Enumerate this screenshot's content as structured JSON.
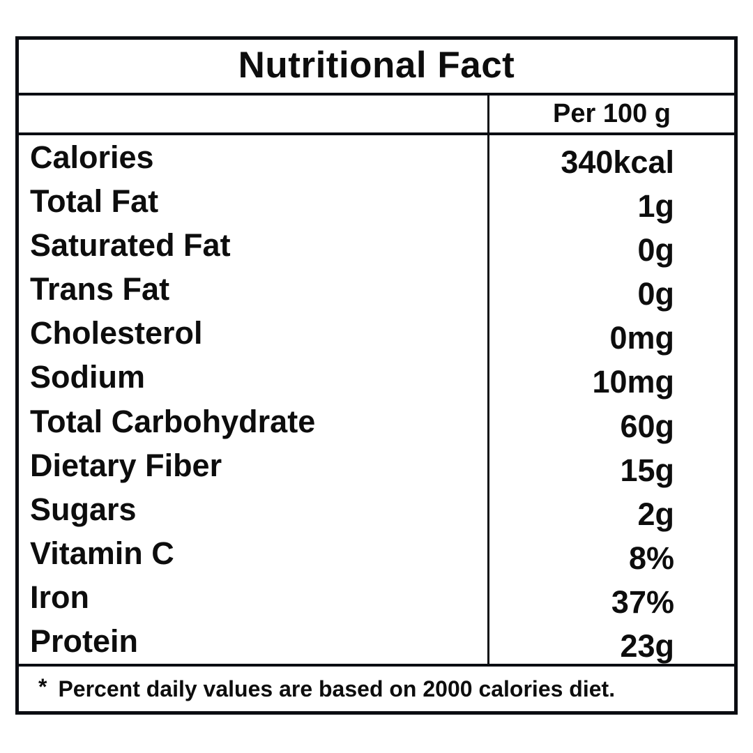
{
  "title": "Nutritional Fact",
  "column_header": "Per 100 g",
  "table": {
    "rows": [
      {
        "label": "Calories",
        "value": "340kcal"
      },
      {
        "label": "Total Fat",
        "value": "1g"
      },
      {
        "label": "Saturated Fat",
        "value": "0g"
      },
      {
        "label": "Trans Fat",
        "value": "0g"
      },
      {
        "label": "Cholesterol",
        "value": "0mg"
      },
      {
        "label": "Sodium",
        "value": "10mg"
      },
      {
        "label": "Total Carbohydrate",
        "value": "60g"
      },
      {
        "label": "Dietary Fiber",
        "value": "15g"
      },
      {
        "label": "Sugars",
        "value": "2g"
      },
      {
        "label": "Vitamin C",
        "value": "8%"
      },
      {
        "label": "Iron",
        "value": "37%"
      },
      {
        "label": "Protein",
        "value": "23g"
      }
    ]
  },
  "footnote": {
    "marker": "*",
    "text": "Percent daily values are based on 2000 calories diet."
  },
  "colors": {
    "background": "#ffffff",
    "text": "#0d0d0d",
    "border": "#0b0d12"
  }
}
